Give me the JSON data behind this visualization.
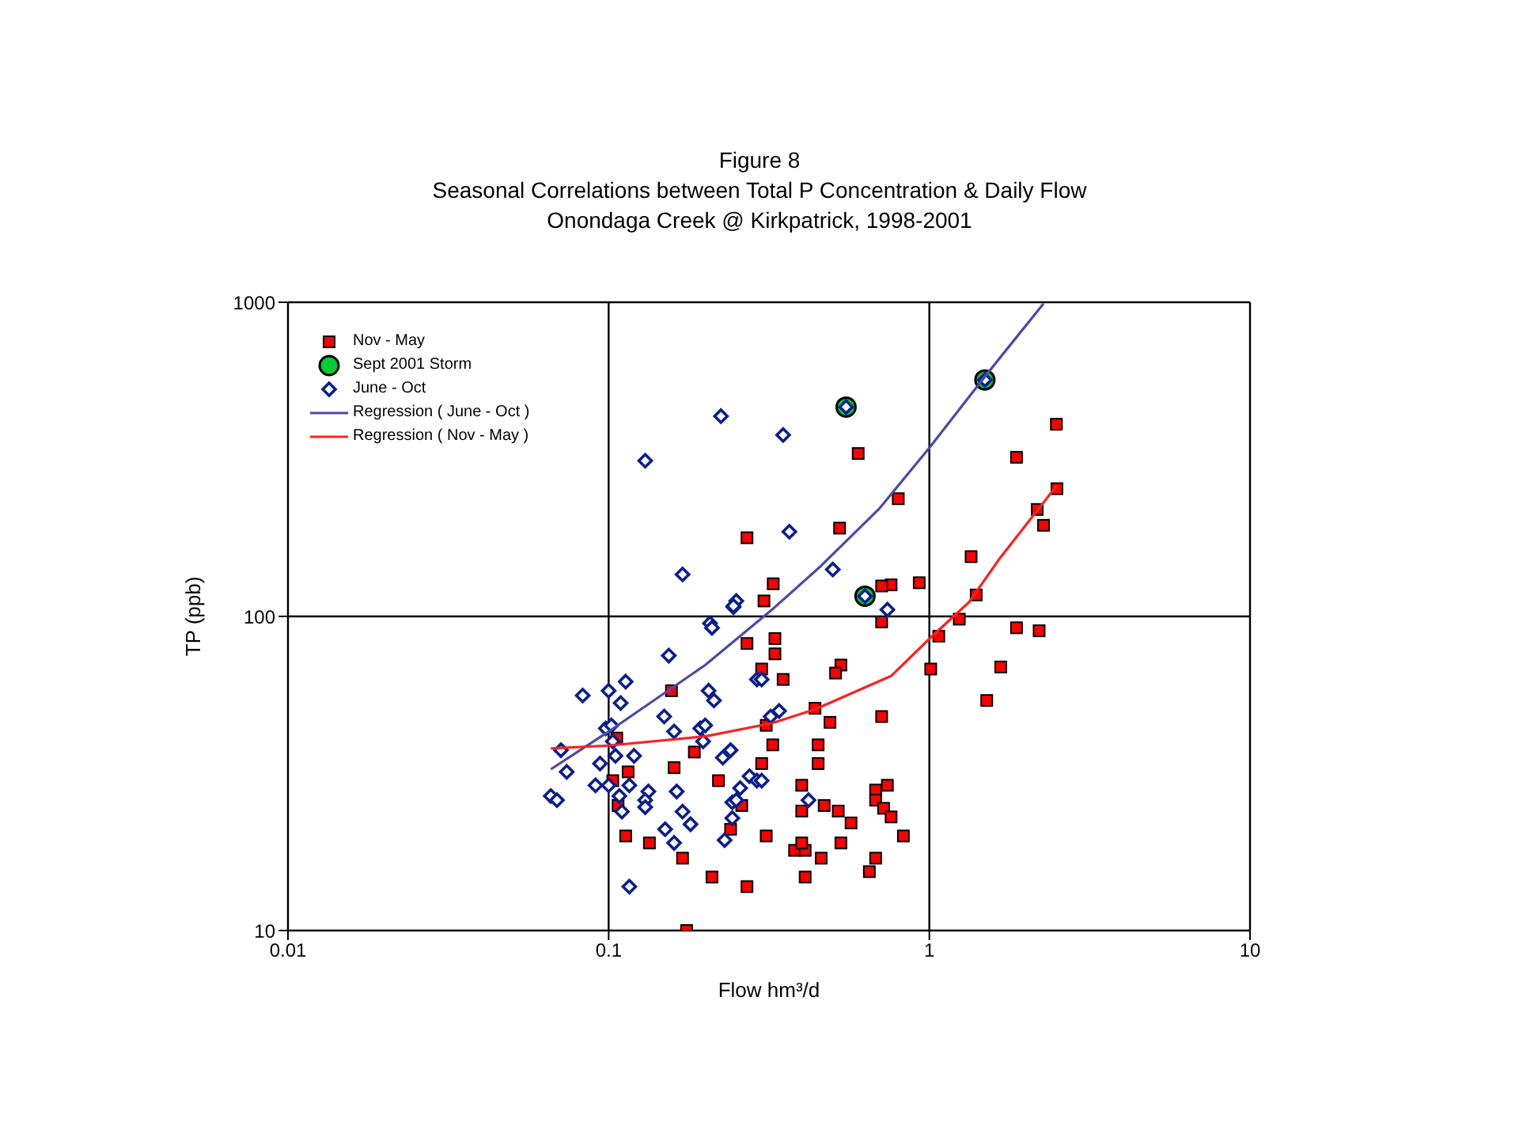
{
  "chart_data": {
    "type": "scatter",
    "title": "Figure 8",
    "subtitle": "Seasonal Correlations between Total P Concentration & Daily Flow\nOnondaga Creek @ Kirkpatrick, 1998-2001",
    "xlabel": "Flow hm³/d",
    "ylabel": "TP (ppb)",
    "log": "xy",
    "xlim": [
      0.01,
      10
    ],
    "ylim": [
      10,
      1000
    ],
    "xticks": [
      0.01,
      0.1,
      1,
      10
    ],
    "yticks": [
      10,
      100,
      1000
    ],
    "grid": true,
    "legend": "top left",
    "series": [
      {
        "name": "Nov - May",
        "marker": "square",
        "color": "#ff0000",
        "x": [
          2.49,
          1.87,
          2.5,
          2.17,
          2.27,
          0.6,
          0.8,
          0.525,
          1.35,
          1.4,
          0.93,
          0.76,
          0.71,
          0.27,
          0.326,
          0.305,
          0.71,
          1.24,
          1.07,
          1.01,
          1.87,
          2.2,
          1.67,
          1.51,
          0.33,
          0.33,
          0.3,
          0.35,
          0.53,
          0.51,
          0.44,
          0.49,
          0.71,
          0.31,
          0.325,
          0.45,
          0.45,
          0.3,
          0.4,
          0.4,
          0.47,
          0.52,
          0.57,
          0.68,
          0.74,
          0.68,
          0.72,
          0.76,
          0.83,
          0.31,
          0.38,
          0.41,
          0.4,
          0.53,
          0.46,
          0.68,
          0.65,
          0.41,
          0.27,
          0.157,
          0.106,
          0.185,
          0.115,
          0.16,
          0.22,
          0.103,
          0.107,
          0.26,
          0.113,
          0.134,
          0.17,
          0.21,
          0.27,
          0.175,
          0.24
        ],
        "values": [
          409,
          321,
          255,
          219,
          195,
          330,
          237,
          191,
          155,
          117,
          128,
          126,
          125,
          178,
          127,
          112,
          96,
          98,
          86.5,
          68,
          92,
          90,
          69,
          54,
          85,
          76,
          68,
          63,
          70,
          66,
          51,
          46,
          48,
          45,
          39,
          39,
          34,
          34,
          29,
          24,
          25,
          24,
          22,
          28,
          29,
          26,
          24.5,
          23,
          20,
          20,
          18,
          18,
          19,
          19,
          17,
          17,
          15.4,
          14.8,
          82,
          58,
          41,
          37,
          32,
          33,
          30,
          30,
          25,
          25,
          20,
          19,
          17,
          14.8,
          13.8,
          10,
          21
        ]
      },
      {
        "name": "Sept 2001 Storm",
        "marker": "circle",
        "color": "#00cc33",
        "x": [
          0.55,
          1.49,
          0.63
        ],
        "values": [
          464,
          566,
          116
        ]
      },
      {
        "name": "June - Oct",
        "marker": "diamond",
        "color": "#0a1e8c",
        "x": [
          0.245,
          0.207,
          0.21,
          0.154,
          0.29,
          0.083,
          0.1,
          0.113,
          0.109,
          0.205,
          0.213,
          0.149,
          0.16,
          0.098,
          0.102,
          0.193,
          0.2,
          0.197,
          0.103,
          0.105,
          0.12,
          0.071,
          0.094,
          0.074,
          0.227,
          0.24,
          0.275,
          0.29,
          0.091,
          0.1,
          0.116,
          0.133,
          0.108,
          0.13,
          0.13,
          0.11,
          0.163,
          0.257,
          0.243,
          0.25,
          0.17,
          0.243,
          0.18,
          0.15,
          0.16,
          0.23,
          0.116,
          0.066,
          0.069,
          0.74,
          0.34,
          0.32,
          0.3,
          0.3,
          0.42,
          0.224,
          0.35,
          0.13,
          0.366,
          0.17,
          0.25,
          0.245,
          0.5,
          0.55,
          1.49,
          0.63
        ],
        "values": [
          107,
          95,
          92,
          75,
          63,
          56,
          58,
          62,
          53,
          58,
          54,
          48,
          43,
          44,
          45,
          44,
          45,
          40,
          40,
          36,
          36,
          37.5,
          34,
          32,
          35.5,
          37.5,
          31,
          30,
          29,
          29,
          29,
          27.7,
          26.8,
          26,
          24.7,
          23.9,
          27.7,
          28.4,
          25.6,
          26,
          23.9,
          22.8,
          21.8,
          21,
          19,
          19.4,
          13.8,
          26.8,
          26,
          105,
          50,
          48,
          63,
          30,
          26,
          434,
          378,
          313,
          186,
          136,
          112,
          108,
          141,
          464,
          566,
          116
        ]
      },
      {
        "name": "Regression ( June - Oct )",
        "type": "line",
        "marker": "none",
        "color": "#4a4aa8",
        "x": [
          0.066,
          0.1,
          0.2,
          0.323,
          0.46,
          0.7,
          1.0,
          1.49,
          2.27
        ],
        "values": [
          32.6,
          43,
          70,
          105,
          145,
          221,
          344,
          580,
          990
        ]
      },
      {
        "name": "Regression ( Nov - May )",
        "type": "line",
        "marker": "none",
        "color": "#ff2020",
        "x": [
          0.066,
          0.1,
          0.2,
          0.323,
          0.44,
          0.76,
          1.02,
          1.19,
          1.33,
          1.65,
          2.49
        ],
        "values": [
          38,
          38.8,
          41.5,
          45.7,
          50.6,
          64.6,
          86.5,
          100,
          111,
          152,
          260
        ]
      }
    ]
  }
}
